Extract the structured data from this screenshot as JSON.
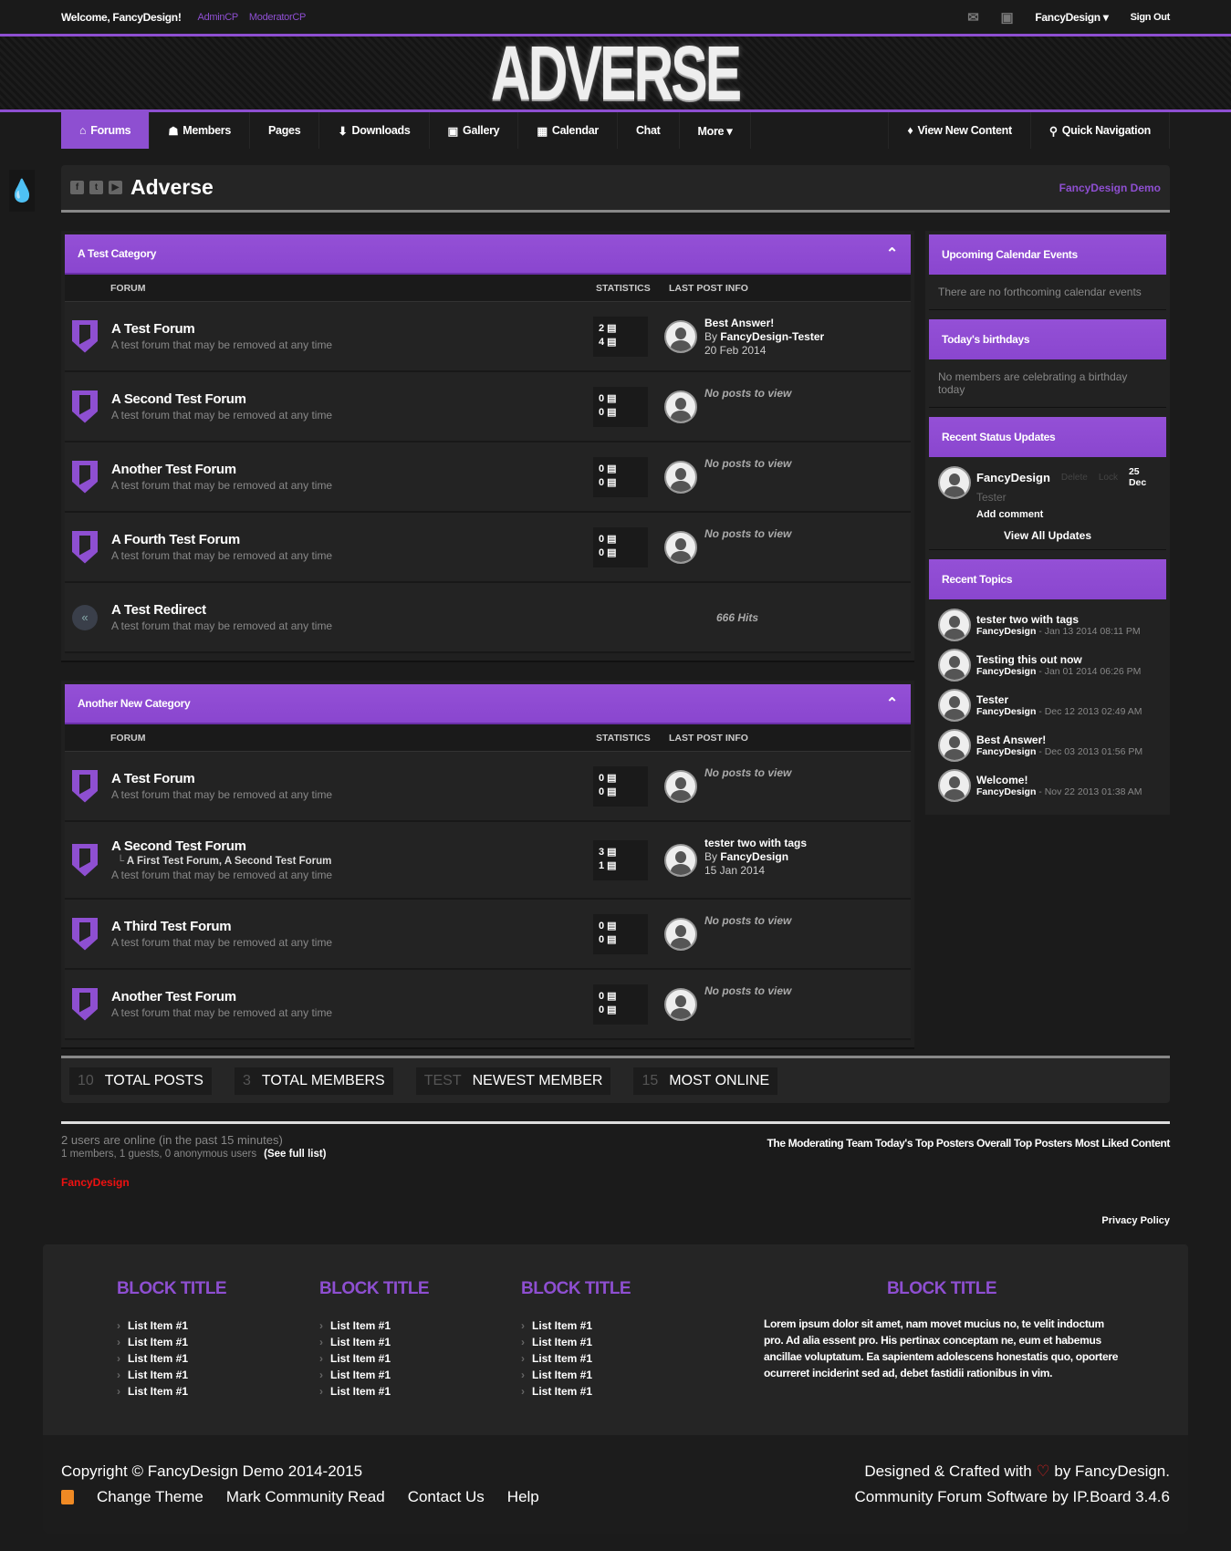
{
  "topbar": {
    "welcome": "Welcome, FancyDesign!",
    "admincp": "AdminCP",
    "modcp": "ModeratorCP",
    "user": "FancyDesign ▾",
    "signout": "Sign Out"
  },
  "logo": "ADVERSE",
  "nav": {
    "items": [
      "Forums",
      "Members",
      "Pages",
      "Downloads",
      "Gallery",
      "Calendar",
      "Chat",
      "More ▾"
    ],
    "icons": [
      "⌂",
      "☗",
      "",
      "⬇",
      "▣",
      "▦",
      "",
      ""
    ],
    "right": [
      "View New Content",
      "Quick Navigation"
    ]
  },
  "title": {
    "text": "Adverse",
    "demo": "FancyDesign Demo"
  },
  "columns": {
    "forum": "FORUM",
    "stats": "STATISTICS",
    "last": "LAST POST INFO"
  },
  "categories": [
    {
      "name": "A Test Category",
      "forums": [
        {
          "name": "A Test Forum",
          "desc": "A test forum that may be removed at any time",
          "topics": "2",
          "posts": "4",
          "last": {
            "title": "Best Answer!",
            "by": "FancyDesign-Tester",
            "date": "20 Feb 2014"
          }
        },
        {
          "name": "A Second Test Forum",
          "desc": "A test forum that may be removed at any time",
          "topics": "0",
          "posts": "0",
          "none": "No posts to view"
        },
        {
          "name": "Another Test Forum",
          "desc": "A test forum that may be removed at any time",
          "topics": "0",
          "posts": "0",
          "none": "No posts to view"
        },
        {
          "name": "A Fourth Test Forum",
          "desc": "A test forum that may be removed at any time",
          "topics": "0",
          "posts": "0",
          "none": "No posts to view"
        },
        {
          "name": "A Test Redirect",
          "desc": "A test forum that may be removed at any time",
          "redirect": true,
          "hits": "666 Hits"
        }
      ]
    },
    {
      "name": "Another New Category",
      "forums": [
        {
          "name": "A Test Forum",
          "desc": "A test forum that may be removed at any time",
          "topics": "0",
          "posts": "0",
          "none": "No posts to view"
        },
        {
          "name": "A Second Test Forum",
          "subforums": "A First Test Forum, A Second Test Forum",
          "desc": "A test forum that may be removed at any time",
          "topics": "3",
          "posts": "1",
          "last": {
            "title": "tester two with tags",
            "by": "FancyDesign",
            "date": "15 Jan 2014"
          }
        },
        {
          "name": "A Third Test Forum",
          "desc": "A test forum that may be removed at any time",
          "topics": "0",
          "posts": "0",
          "none": "No posts to view"
        },
        {
          "name": "Another Test Forum",
          "desc": "A test forum that may be removed at any time",
          "topics": "0",
          "posts": "0",
          "none": "No posts to view"
        }
      ]
    }
  ],
  "sidebar": {
    "calendar": {
      "title": "Upcoming Calendar Events",
      "text": "There are no forthcoming calendar events"
    },
    "birthdays": {
      "title": "Today's birthdays",
      "text": "No members are celebrating a birthday today"
    },
    "status": {
      "title": "Recent Status Updates",
      "user": "FancyDesign",
      "delete": "Delete",
      "lock": "Lock",
      "date": "25 Dec",
      "text": "Tester",
      "comment": "Add comment",
      "viewall": "View All Updates"
    },
    "topics": {
      "title": "Recent Topics",
      "items": [
        {
          "title": "tester two with tags",
          "author": "FancyDesign",
          "date": "Jan 13 2014 08:11 PM"
        },
        {
          "title": "Testing this out now",
          "author": "FancyDesign",
          "date": "Jan 01 2014 06:26 PM"
        },
        {
          "title": "Tester",
          "author": "FancyDesign",
          "date": "Dec 12 2013 02:49 AM"
        },
        {
          "title": "Best Answer!",
          "author": "FancyDesign",
          "date": "Dec 03 2013 01:56 PM"
        },
        {
          "title": "Welcome!",
          "author": "FancyDesign",
          "date": "Nov 22 2013 01:38 AM"
        }
      ]
    }
  },
  "stats": [
    {
      "v": "10",
      "l": "TOTAL POSTS"
    },
    {
      "v": "3",
      "l": "TOTAL MEMBERS"
    },
    {
      "v": "TEST",
      "l": "NEWEST MEMBER"
    },
    {
      "v": "15",
      "l": "MOST ONLINE"
    }
  ],
  "online": {
    "line1": "2 users are online (in the past 15 minutes)",
    "line2": "1 members, 1 guests, 0 anonymous users",
    "fulllist": "(See full list)",
    "links": "The Moderating Team Today's Top Posters Overall Top Posters Most Liked Content",
    "user": "FancyDesign",
    "privacy": "Privacy Policy"
  },
  "footer": {
    "blocks": [
      {
        "title": "BLOCK TITLE",
        "items": [
          "List Item #1",
          "List Item #1",
          "List Item #1",
          "List Item #1",
          "List Item #1"
        ]
      },
      {
        "title": "BLOCK TITLE",
        "items": [
          "List Item #1",
          "List Item #1",
          "List Item #1",
          "List Item #1",
          "List Item #1"
        ]
      },
      {
        "title": "BLOCK TITLE",
        "items": [
          "List Item #1",
          "List Item #1",
          "List Item #1",
          "List Item #1",
          "List Item #1"
        ]
      }
    ],
    "text_block": {
      "title": "BLOCK TITLE",
      "text": "Lorem ipsum dolor sit amet, nam movet mucius no, te velit indoctum pro. Ad alia essent pro. His pertinax conceptam ne, eum et habemus ancillae voluptatum. Ea sapientem adolescens honestatis quo, oportere ocurreret inciderint sed ad, debet fastidii rationibus in vim."
    }
  },
  "copyright": {
    "text": "Copyright © FancyDesign Demo 2014-2015",
    "links": [
      "Change Theme",
      "Mark Community Read",
      "Contact Us",
      "Help"
    ],
    "crafted_pre": "Designed & Crafted with",
    "crafted_post": "by FancyDesign.",
    "software": "Community Forum Software by IP.Board 3.4.6"
  },
  "colors": {
    "accent": "#8e4fd1",
    "bg": "#1b1b1b"
  }
}
